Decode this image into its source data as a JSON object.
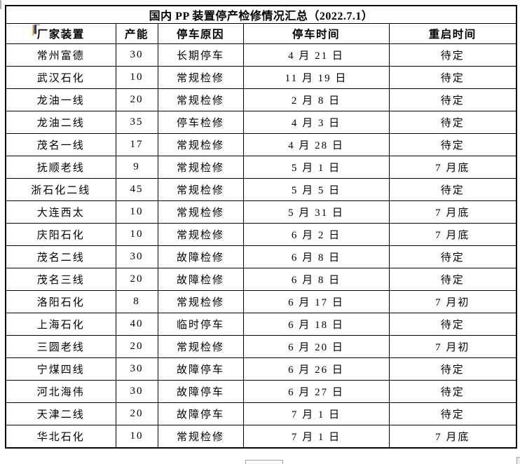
{
  "title": "国内 PP 装置停产检修情况汇总（2022.7.1）",
  "table": {
    "column_keys": [
      "plant",
      "capacity",
      "stop-reason",
      "stop-date",
      "restart-date"
    ],
    "headers": [
      "厂家装置",
      "产能",
      "停车原因",
      "停车时间",
      "重启时间"
    ],
    "rows": [
      [
        "常州富德",
        "30",
        "长期停车",
        "4 月 21 日",
        "待定"
      ],
      [
        "武汉石化",
        "10",
        "常规检修",
        "11 月 19 日",
        "待定"
      ],
      [
        "龙油一线",
        "20",
        "常规检修",
        "2 月 8 日",
        "待定"
      ],
      [
        "龙油二线",
        "35",
        "停车检修",
        "4 月 3 日",
        "待定"
      ],
      [
        "茂名一线",
        "17",
        "常规检修",
        "4 月 28 日",
        "待定"
      ],
      [
        "抚顺老线",
        "9",
        "常规检修",
        "5 月 1 日",
        "7 月底"
      ],
      [
        "浙石化二线",
        "45",
        "常规检修",
        "5 月 5 日",
        "待定"
      ],
      [
        "大连西太",
        "10",
        "常规检修",
        "5 月 31 日",
        "7 月底"
      ],
      [
        "庆阳石化",
        "10",
        "常规检修",
        "6 月 2 日",
        "7 月底"
      ],
      [
        "茂名二线",
        "30",
        "故障检修",
        "6 月 8 日",
        "待定"
      ],
      [
        "茂名三线",
        "20",
        "故障检修",
        "6 月 8 日",
        "待定"
      ],
      [
        "洛阳石化",
        "8",
        "常规检修",
        "6 月 17 日",
        "7 月初"
      ],
      [
        "上海石化",
        "40",
        "临时停车",
        "6 月 18 日",
        "待定"
      ],
      [
        "三圆老线",
        "20",
        "常规检修",
        "6 月 20 日",
        "7 月初"
      ],
      [
        "宁煤四线",
        "30",
        "故障停车",
        "6 月 26 日",
        "待定"
      ],
      [
        "河北海伟",
        "30",
        "故障停车",
        "6 月 27 日",
        "待定"
      ],
      [
        "天津二线",
        "20",
        "故障停车",
        "7 月 1 日",
        "待定"
      ],
      [
        "华北石化",
        "10",
        "常规检修",
        "7 月 1 日",
        "7 月底"
      ]
    ]
  },
  "colors": {
    "table_border": "#000000",
    "text": "#000000",
    "background": "#ffffff",
    "artifact_gray": "#b0b0b0",
    "artifact_orange": "#e39a3b",
    "artifact_blue": "#3a5fa8"
  }
}
